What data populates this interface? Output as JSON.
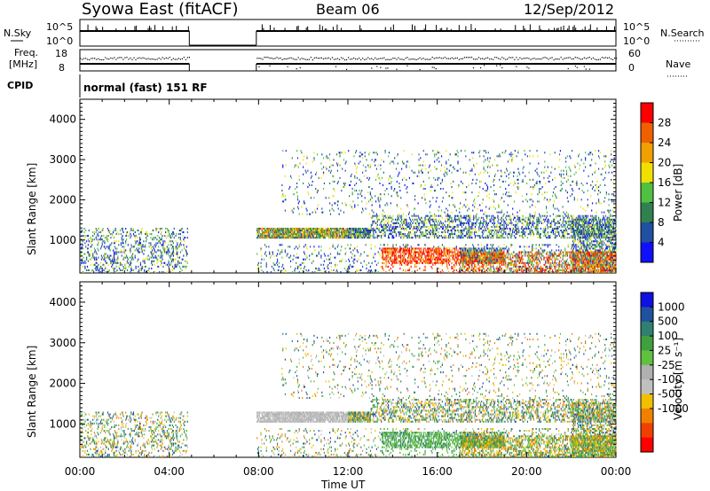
{
  "header": {
    "title": "Syowa East (fitACF)",
    "beam": "Beam 06",
    "date": "12/Sep/2012"
  },
  "strips": {
    "nsky_label": "N.Sky",
    "nsky_ticks": [
      "10^5",
      "10^0"
    ],
    "nsearch_label": "N.Search",
    "freq_label_1": "Freq.",
    "freq_label_2": "[MHz]",
    "freq_ticks": [
      "18",
      "8"
    ],
    "nave_label": "Nave",
    "nave_ticks": [
      "60",
      "0"
    ],
    "cpid_label": "CPID",
    "cpid_value": "normal (fast) 151 RF"
  },
  "colors": {
    "power_scale": [
      "#1010ff",
      "#2050a0",
      "#308050",
      "#50c040",
      "#f0e000",
      "#f0a000",
      "#f06000",
      "#ff0000"
    ],
    "velocity_scale": [
      "#ff0000",
      "#f04000",
      "#f08000",
      "#f0c000",
      "#c0c0c0",
      "#b0b0b0",
      "#60c040",
      "#40a040",
      "#308070",
      "#2050a0",
      "#1010e0"
    ]
  },
  "chart_data": [
    {
      "type": "heatmap",
      "panel": "power",
      "ylabel": "Slant Range [km]",
      "ylim": [
        180,
        4500
      ],
      "y_ticks": [
        "4000",
        "3000",
        "2000",
        "1000"
      ],
      "xlabel": "Time UT",
      "x_ticks": [
        "00:00",
        "04:00",
        "08:00",
        "12:00",
        "16:00",
        "20:00",
        "00:00"
      ],
      "xlim_hours": [
        0,
        24
      ],
      "colorbar_label": "Power [dB]",
      "colorbar_ticks": [
        "28",
        "24",
        "20",
        "16",
        "12",
        "8",
        "4"
      ],
      "colorbar_range": [
        0,
        32
      ],
      "data_gaps_hours": [
        [
          4.9,
          7.9
        ]
      ]
    },
    {
      "type": "heatmap",
      "panel": "velocity",
      "ylabel": "Slant Range [km]",
      "ylim": [
        180,
        4500
      ],
      "y_ticks": [
        "4000",
        "3000",
        "2000",
        "1000"
      ],
      "xlabel": "Time UT",
      "x_ticks": [
        "00:00",
        "04:00",
        "08:00",
        "12:00",
        "16:00",
        "20:00",
        "00:00"
      ],
      "xlim_hours": [
        0,
        24
      ],
      "colorbar_label": "Velocity [m s⁻¹]",
      "colorbar_ticks": [
        "1000",
        "500",
        "100",
        "25",
        "-25",
        "-100",
        "-500",
        "-1000"
      ],
      "data_gaps_hours": [
        [
          4.9,
          7.9
        ]
      ]
    }
  ]
}
